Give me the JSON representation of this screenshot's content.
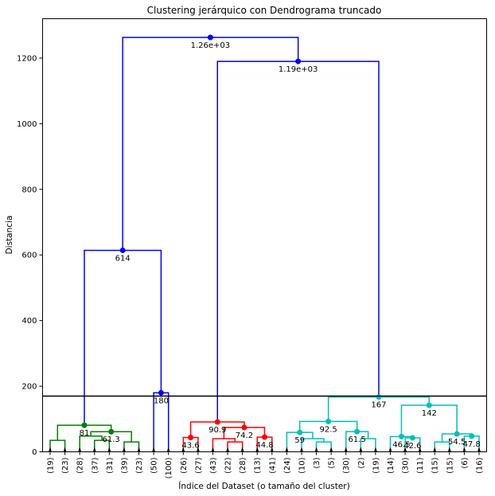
{
  "chart_data": {
    "type": "dendrogram",
    "title": "Clustering jerárquico con Dendrograma truncado",
    "xlabel": "Índice del Dataset (o tamaño del cluster)",
    "ylabel": "Distancia",
    "ylim": [
      0,
      1320
    ],
    "yticks": [
      0,
      200,
      400,
      600,
      800,
      1000,
      1200
    ],
    "threshold": 170,
    "leaf_labels": [
      "(19)",
      "(23)",
      "(28)",
      "(37)",
      "(31)",
      "(39)",
      "(23)",
      "(50)",
      "(100)",
      "(26)",
      "(27)",
      "(43)",
      "(22)",
      "(28)",
      "(13)",
      "(41)",
      "(24)",
      "(10)",
      "(3)",
      "(5)",
      "(30)",
      "(2)",
      "(19)",
      "(14)",
      "(30)",
      "(11)",
      "(15)",
      "(15)",
      "(6)",
      "(16)"
    ],
    "links": [
      {
        "left": 0,
        "right": 1,
        "height": 35,
        "color": "#008000"
      },
      {
        "left": 3,
        "right": 4,
        "height": 35,
        "color": "#008000"
      },
      {
        "left": 5,
        "right": 6,
        "height": 30,
        "color": "#008000"
      },
      {
        "left": 2,
        "right": 31,
        "height": 48,
        "color": "#008000"
      },
      {
        "left": 32,
        "right": 33,
        "height": 61.3,
        "color": "#008000",
        "label": "61.3"
      },
      {
        "left": 30,
        "right": 34,
        "height": 81,
        "color": "#008000",
        "label": "81"
      },
      {
        "left": 7,
        "right": 8,
        "height": 180,
        "color": "#0000ff",
        "label": "180"
      },
      {
        "left": 35,
        "right": 36,
        "height": 614,
        "color": "#0000ff",
        "label": "614"
      },
      {
        "left": 9,
        "right": 10,
        "height": 43.6,
        "color": "#ff0000",
        "label": "43.6"
      },
      {
        "left": 12,
        "right": 13,
        "height": 30,
        "color": "#ff0000"
      },
      {
        "left": 11,
        "right": 39,
        "height": 40,
        "color": "#ff0000"
      },
      {
        "left": 14,
        "right": 15,
        "height": 44.8,
        "color": "#ff0000",
        "label": "44.8"
      },
      {
        "left": 40,
        "right": 41,
        "height": 74.2,
        "color": "#ff0000",
        "label": "74.2"
      },
      {
        "left": 38,
        "right": 42,
        "height": 90.9,
        "color": "#ff0000",
        "label": "90.9"
      },
      {
        "left": 18,
        "right": 19,
        "height": 30,
        "color": "#00bfbf"
      },
      {
        "left": 17,
        "right": 44,
        "height": 40,
        "color": "#00bfbf"
      },
      {
        "left": 16,
        "right": 45,
        "height": 59,
        "color": "#00bfbf",
        "label": "59"
      },
      {
        "left": 21,
        "right": 22,
        "height": 40,
        "color": "#00bfbf"
      },
      {
        "left": 20,
        "right": 47,
        "height": 61.5,
        "color": "#00bfbf",
        "label": "61.5"
      },
      {
        "left": 46,
        "right": 48,
        "height": 92.5,
        "color": "#00bfbf",
        "label": "92.5"
      },
      {
        "left": 24,
        "right": 25,
        "height": 42.6,
        "color": "#00bfbf",
        "label": "42.6"
      },
      {
        "left": 23,
        "right": 50,
        "height": 46.5,
        "color": "#00bfbf",
        "label": "46.5"
      },
      {
        "left": 28,
        "right": 29,
        "height": 47.8,
        "color": "#00bfbf",
        "label": "47.8"
      },
      {
        "left": 26,
        "right": 27,
        "height": 30,
        "color": "#00bfbf"
      },
      {
        "left": 53,
        "right": 52,
        "height": 54.5,
        "color": "#00bfbf",
        "label": "54.5"
      },
      {
        "left": 51,
        "right": 54,
        "height": 142,
        "color": "#00bfbf",
        "label": "142"
      },
      {
        "left": 49,
        "right": 55,
        "height": 167,
        "color": "#00bfbf",
        "label": "167"
      },
      {
        "left": 43,
        "right": 56,
        "height": 1190,
        "color": "#0000ff",
        "label": "1.19e+03"
      },
      {
        "left": 37,
        "right": 57,
        "height": 1263,
        "color": "#0000ff",
        "label": "1.26e+03"
      }
    ]
  }
}
